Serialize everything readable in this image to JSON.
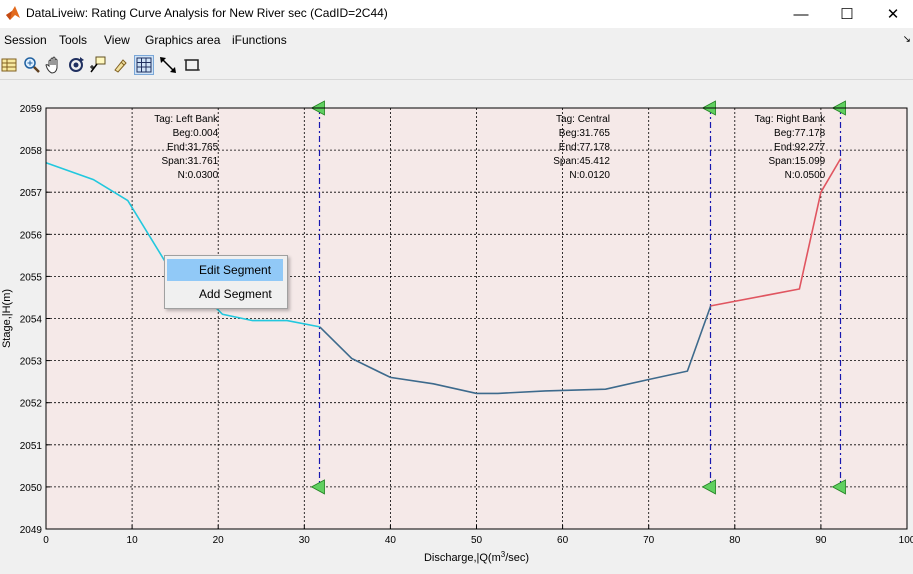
{
  "window": {
    "title": "DataLiveiw: Rating Curve Analysis for New River sec (CadID=2C44)"
  },
  "controls": {
    "minimize": "—",
    "maximize": "☐",
    "close": "✕"
  },
  "menu": {
    "items": [
      "Session",
      "Tools",
      "View",
      "Graphics area",
      "iFunctions"
    ]
  },
  "toolbar": {
    "buttons": [
      {
        "icon": "table-icon"
      },
      {
        "icon": "zoom-in-icon"
      },
      {
        "icon": "pan-hand-icon"
      },
      {
        "icon": "rotate-icon"
      },
      {
        "icon": "data-cursor-icon"
      },
      {
        "icon": "brush-icon"
      },
      {
        "icon": "grid-icon",
        "active": true
      },
      {
        "icon": "arrow-line-icon"
      },
      {
        "icon": "rectangle-select-icon"
      }
    ]
  },
  "chart_data": {
    "type": "line",
    "xlabel_main": "Discharge,|Q(m",
    "xlabel_sup": "3",
    "xlabel_tail": "/sec)",
    "ylabel": "Stage,|H(m)",
    "xlim": [
      0,
      100
    ],
    "ylim": [
      2049,
      2059
    ],
    "xticks": [
      0,
      10,
      20,
      30,
      40,
      50,
      60,
      70,
      80,
      90,
      100
    ],
    "yticks": [
      2049,
      2050,
      2051,
      2052,
      2053,
      2054,
      2055,
      2056,
      2057,
      2058,
      2059
    ],
    "grid": true,
    "background": "#f5e9e8",
    "series": [
      {
        "color": "#22c8de",
        "points": [
          [
            0,
            2057.7
          ],
          [
            5.5,
            2057.3
          ],
          [
            9.5,
            2056.8
          ],
          [
            14,
            2055.3
          ],
          [
            18,
            2054.6
          ],
          [
            20.5,
            2054.1
          ],
          [
            24,
            2053.95
          ],
          [
            28,
            2053.95
          ],
          [
            31.8,
            2053.8
          ]
        ]
      },
      {
        "color": "#3d6a8c",
        "points": [
          [
            31.8,
            2053.8
          ],
          [
            35.5,
            2053.05
          ],
          [
            40,
            2052.6
          ],
          [
            45,
            2052.45
          ],
          [
            50,
            2052.22
          ],
          [
            52.5,
            2052.22
          ],
          [
            58,
            2052.28
          ],
          [
            65,
            2052.32
          ],
          [
            70,
            2052.55
          ],
          [
            74.5,
            2052.75
          ],
          [
            77.2,
            2054.3
          ]
        ]
      },
      {
        "color": "#e05560",
        "points": [
          [
            77.2,
            2054.3
          ],
          [
            87.5,
            2054.7
          ],
          [
            90,
            2057.0
          ],
          [
            92.3,
            2057.8
          ]
        ]
      }
    ],
    "dividers": [
      {
        "x": 31.765,
        "top": 2059,
        "bottom": 2050
      },
      {
        "x": 77.178,
        "top": 2059,
        "bottom": 2050
      },
      {
        "x": 92.277,
        "top": 2059,
        "bottom": 2050
      }
    ],
    "divider_color": "#1818b0",
    "marker_color": "#60d060",
    "annotations": [
      {
        "x": 20,
        "lines": [
          "Tag: Left Bank",
          "Beg:0.004",
          "End:31.765",
          "Span:31.761",
          "N:0.0300"
        ]
      },
      {
        "x": 65.5,
        "lines": [
          "Tag: Central",
          "Beg:31.765",
          "End:77.178",
          "Span:45.412",
          "N:0.0120"
        ]
      },
      {
        "x": 90.5,
        "lines": [
          "Tag: Right Bank",
          "Beg:77.178",
          "End:92.277",
          "Span:15.099",
          "N:0.0500"
        ]
      }
    ]
  },
  "context_menu": {
    "items": [
      {
        "label": "Edit Segment",
        "highlighted": true
      },
      {
        "label": "Add Segment",
        "highlighted": false
      }
    ]
  }
}
